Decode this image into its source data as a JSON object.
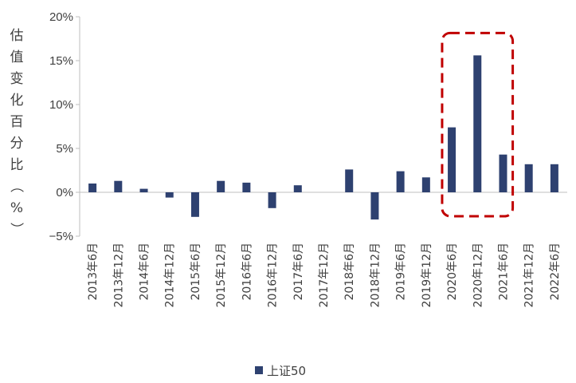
{
  "chart_data": {
    "type": "bar",
    "ylabel": "估值变化百分比（%）",
    "categories": [
      "2013年6月",
      "2013年12月",
      "2014年6月",
      "2014年12月",
      "2015年6月",
      "2015年12月",
      "2016年6月",
      "2016年12月",
      "2017年6月",
      "2017年12月",
      "2018年6月",
      "2018年12月",
      "2019年6月",
      "2019年12月",
      "2020年6月",
      "2020年12月",
      "2021年6月",
      "2021年12月",
      "2022年6月"
    ],
    "series": [
      {
        "name": "上证50",
        "values": [
          1.0,
          1.3,
          0.4,
          -0.6,
          -2.8,
          1.3,
          1.1,
          -1.8,
          0.8,
          0.0,
          2.6,
          -3.1,
          2.4,
          1.7,
          7.4,
          15.6,
          4.3,
          3.2,
          3.2
        ]
      }
    ],
    "ylim": [
      -5,
      20
    ],
    "yticks": [
      -5,
      0,
      5,
      10,
      15,
      20
    ],
    "ytick_labels": [
      "−5%",
      "0%",
      "5%",
      "10%",
      "15%",
      "20%"
    ],
    "bar_color": "#2E4170",
    "highlight": {
      "from_index": 14,
      "to_index": 16,
      "color": "#C00000",
      "style": "dashed"
    },
    "legend_position": "bottom"
  }
}
